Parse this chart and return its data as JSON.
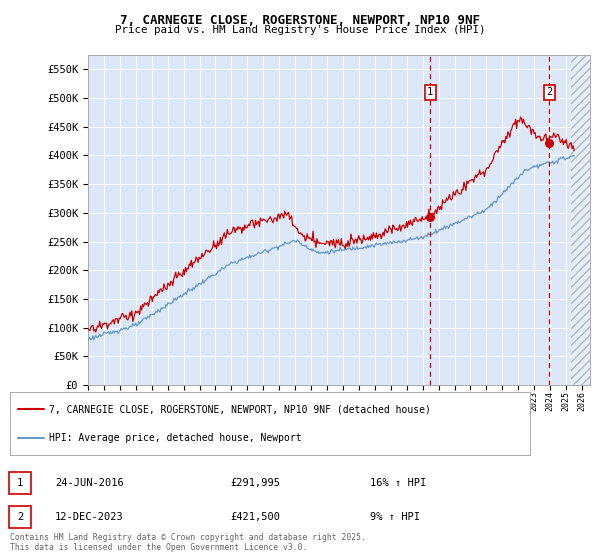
{
  "title_line1": "7, CARNEGIE CLOSE, ROGERSTONE, NEWPORT, NP10 9NF",
  "title_line2": "Price paid vs. HM Land Registry's House Price Index (HPI)",
  "plot_bg_color": "#dce8f8",
  "grid_color": "#ffffff",
  "red_color": "#cc0000",
  "blue_color": "#6699cc",
  "marker1_date_x": 2016.48,
  "marker2_date_x": 2023.95,
  "marker1_price": 291995,
  "marker2_price": 421500,
  "legend_line1": "7, CARNEGIE CLOSE, ROGERSTONE, NEWPORT, NP10 9NF (detached house)",
  "legend_line2": "HPI: Average price, detached house, Newport",
  "footer": "Contains HM Land Registry data © Crown copyright and database right 2025.\nThis data is licensed under the Open Government Licence v3.0.",
  "ylim": [
    0,
    575000
  ],
  "xlim_start": 1995.0,
  "xlim_end": 2026.5,
  "hatch_start": 2025.3,
  "yticks": [
    0,
    50000,
    100000,
    150000,
    200000,
    250000,
    300000,
    350000,
    400000,
    450000,
    500000,
    550000
  ],
  "ytick_labels": [
    "£0",
    "£50K",
    "£100K",
    "£150K",
    "£200K",
    "£250K",
    "£300K",
    "£350K",
    "£400K",
    "£450K",
    "£500K",
    "£550K"
  ]
}
